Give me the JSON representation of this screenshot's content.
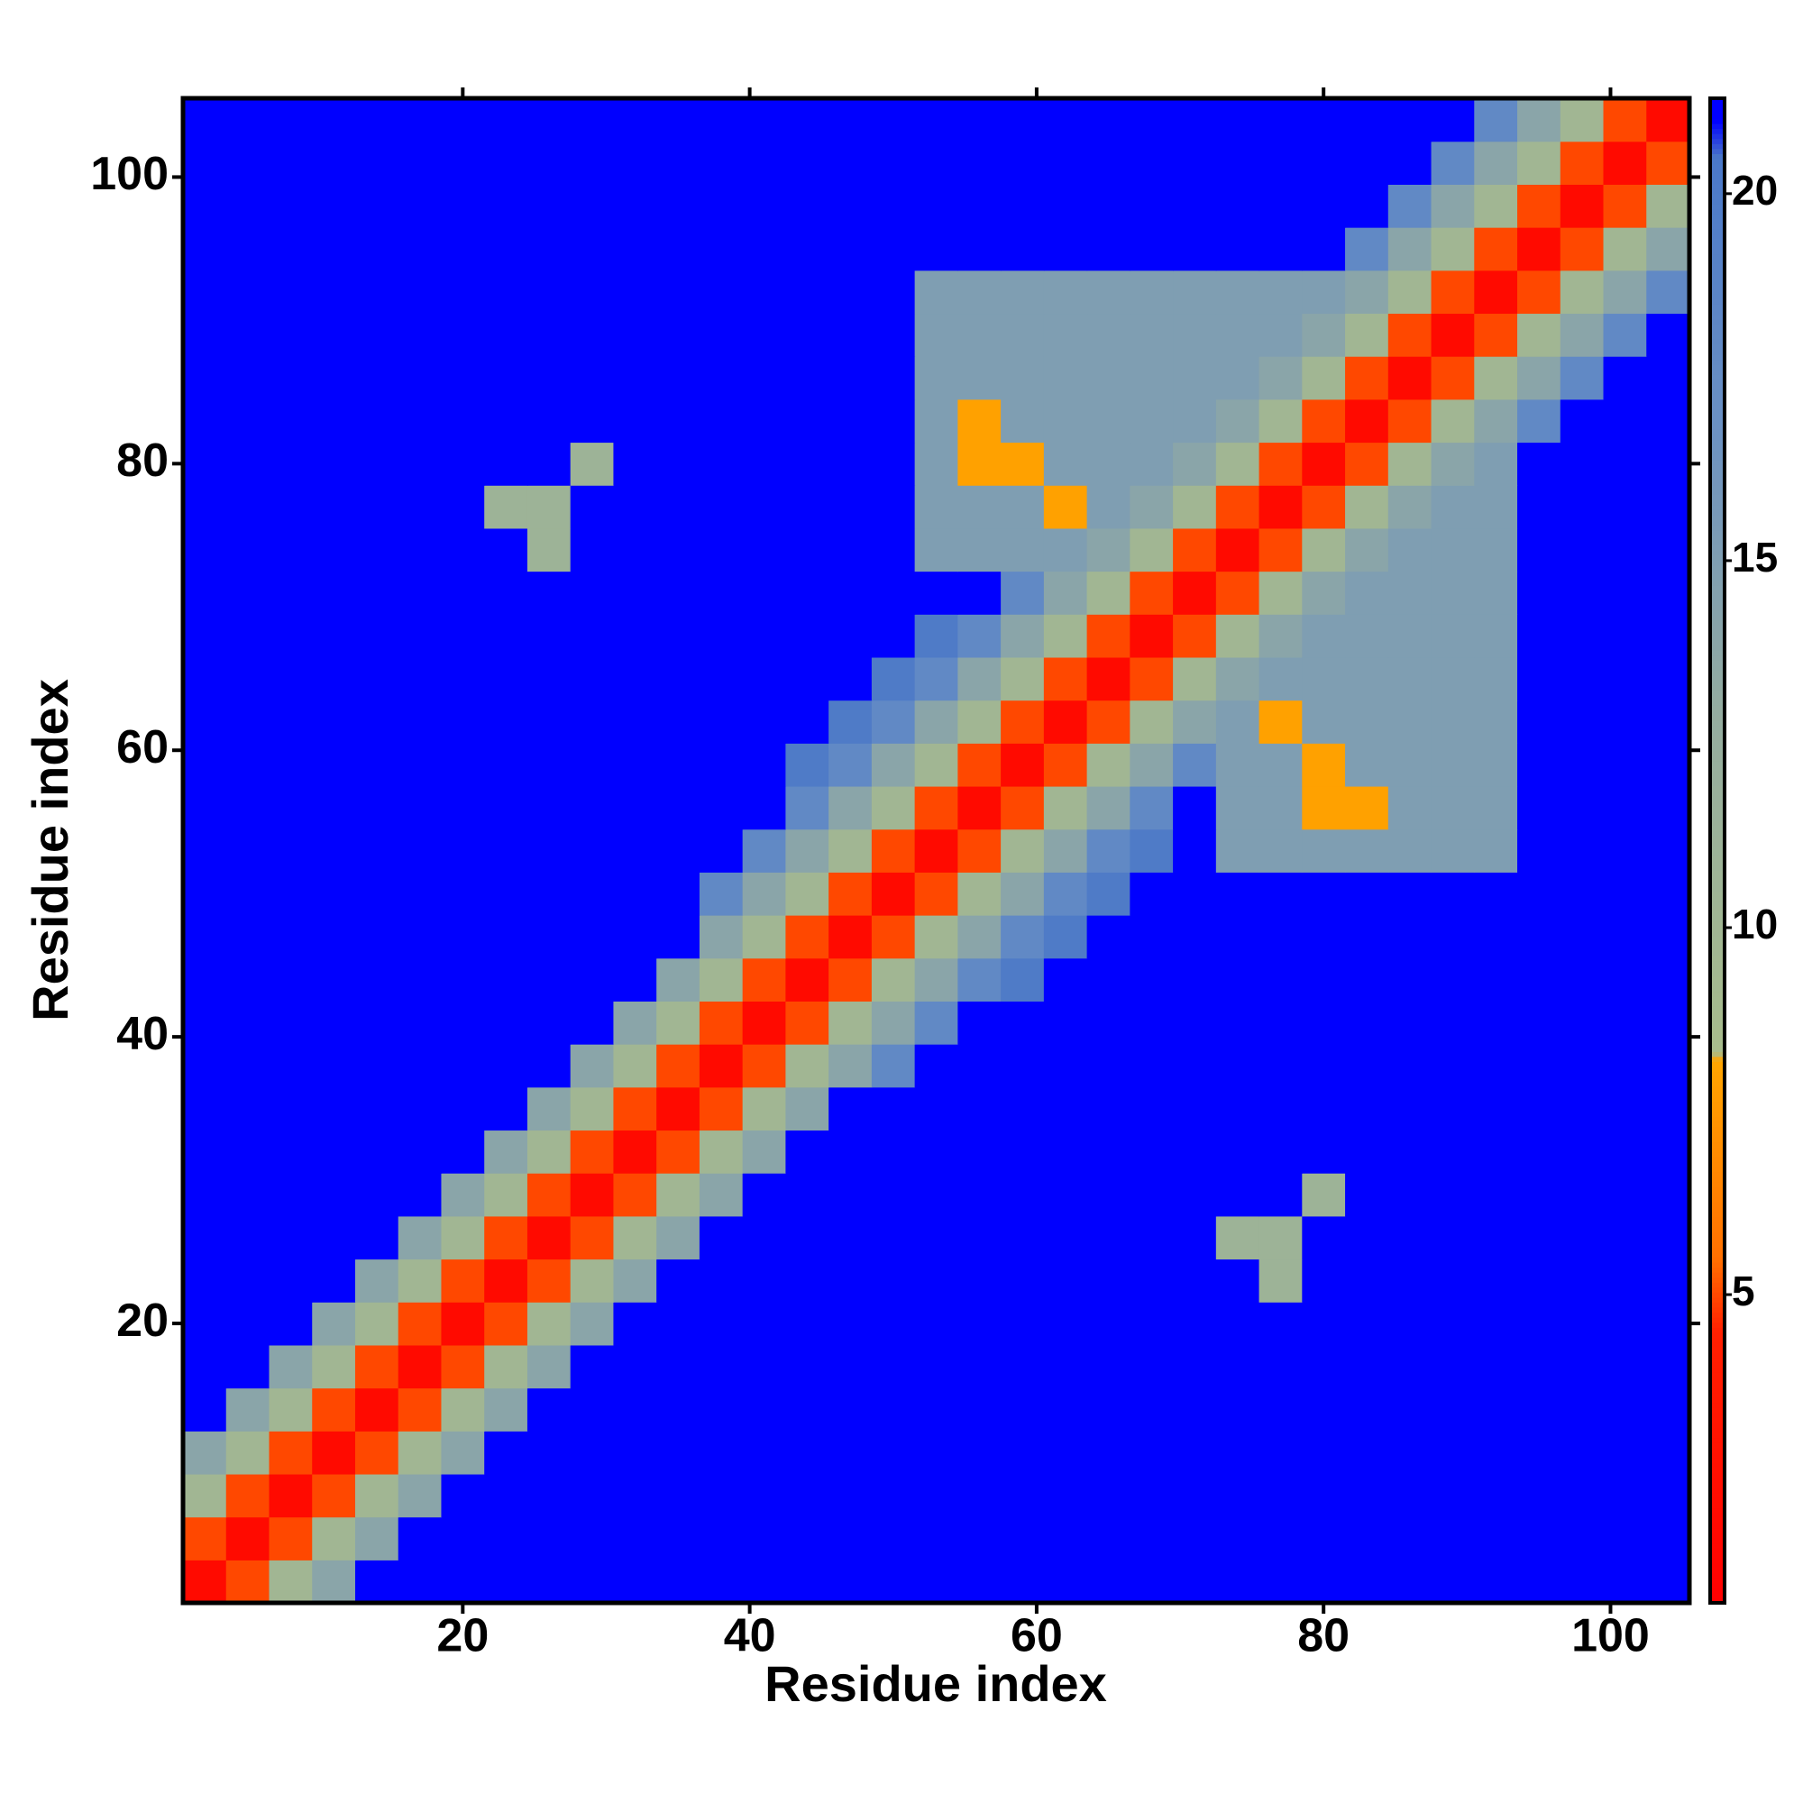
{
  "chart_data": {
    "type": "heatmap",
    "xlabel": "Residue index",
    "ylabel": "Residue index",
    "x": [
      2,
      5,
      8,
      11,
      14,
      17,
      20,
      23,
      26,
      29,
      32,
      35,
      38,
      41,
      44,
      47,
      50,
      53,
      56,
      59,
      62,
      65,
      68,
      71,
      74,
      77,
      80,
      83,
      86,
      89,
      92,
      95,
      98,
      101,
      104
    ],
    "y": [
      2,
      5,
      8,
      11,
      14,
      17,
      20,
      23,
      26,
      29,
      32,
      35,
      38,
      41,
      44,
      47,
      50,
      53,
      56,
      59,
      62,
      65,
      68,
      71,
      74,
      77,
      80,
      83,
      86,
      89,
      92,
      95,
      98,
      101,
      104
    ],
    "z": [
      [
        2,
        5,
        10,
        14,
        21,
        21,
        21,
        21,
        21,
        21,
        21,
        21,
        21,
        21,
        21,
        21,
        21,
        21,
        21,
        21,
        21,
        21,
        21,
        21,
        21,
        21,
        21,
        21,
        21,
        21,
        21,
        21,
        21,
        21,
        21
      ],
      [
        5,
        2,
        5,
        10,
        14,
        21,
        21,
        21,
        21,
        21,
        21,
        21,
        21,
        21,
        21,
        21,
        21,
        21,
        21,
        21,
        21,
        21,
        21,
        21,
        21,
        21,
        21,
        21,
        21,
        21,
        21,
        21,
        21,
        21,
        21
      ],
      [
        10,
        5,
        2,
        5,
        10,
        14,
        21,
        21,
        21,
        21,
        21,
        21,
        21,
        21,
        21,
        21,
        21,
        21,
        21,
        21,
        21,
        21,
        21,
        21,
        21,
        21,
        21,
        21,
        21,
        21,
        21,
        21,
        21,
        21,
        21
      ],
      [
        14,
        10,
        5,
        2,
        5,
        10,
        14,
        21,
        21,
        21,
        21,
        21,
        21,
        21,
        21,
        21,
        21,
        21,
        21,
        21,
        21,
        21,
        21,
        21,
        21,
        21,
        21,
        21,
        21,
        21,
        21,
        21,
        21,
        21,
        21
      ],
      [
        21,
        14,
        10,
        5,
        2,
        5,
        10,
        14,
        21,
        21,
        21,
        21,
        21,
        21,
        21,
        21,
        21,
        21,
        21,
        21,
        21,
        21,
        21,
        21,
        21,
        21,
        21,
        21,
        21,
        21,
        21,
        21,
        21,
        21,
        21
      ],
      [
        21,
        21,
        14,
        10,
        5,
        2,
        5,
        10,
        14,
        21,
        21,
        21,
        21,
        21,
        21,
        21,
        21,
        21,
        21,
        21,
        21,
        21,
        21,
        21,
        21,
        21,
        21,
        21,
        21,
        21,
        21,
        21,
        21,
        21,
        21
      ],
      [
        21,
        21,
        21,
        14,
        10,
        5,
        2,
        5,
        10,
        14,
        21,
        21,
        21,
        21,
        21,
        21,
        21,
        21,
        21,
        21,
        21,
        21,
        21,
        21,
        21,
        21,
        21,
        21,
        21,
        21,
        21,
        21,
        21,
        21,
        21
      ],
      [
        21,
        21,
        21,
        21,
        14,
        10,
        5,
        2,
        5,
        10,
        14,
        21,
        21,
        21,
        21,
        21,
        21,
        21,
        21,
        21,
        21,
        21,
        21,
        21,
        21,
        11,
        21,
        21,
        21,
        21,
        21,
        21,
        21,
        21,
        21
      ],
      [
        21,
        21,
        21,
        21,
        21,
        14,
        10,
        5,
        2,
        5,
        10,
        14,
        21,
        21,
        21,
        21,
        21,
        21,
        21,
        21,
        21,
        21,
        21,
        21,
        11,
        11,
        21,
        21,
        21,
        21,
        21,
        21,
        21,
        21,
        21
      ],
      [
        21,
        21,
        21,
        21,
        21,
        21,
        14,
        10,
        5,
        2,
        5,
        10,
        14,
        21,
        21,
        21,
        21,
        21,
        21,
        21,
        21,
        21,
        21,
        21,
        21,
        21,
        11,
        21,
        21,
        21,
        21,
        21,
        21,
        21,
        21
      ],
      [
        21,
        21,
        21,
        21,
        21,
        21,
        21,
        14,
        10,
        5,
        2,
        5,
        10,
        14,
        21,
        21,
        21,
        21,
        21,
        21,
        21,
        21,
        21,
        21,
        21,
        21,
        21,
        21,
        21,
        21,
        21,
        21,
        21,
        21,
        21
      ],
      [
        21,
        21,
        21,
        21,
        21,
        21,
        21,
        21,
        14,
        10,
        5,
        2,
        5,
        10,
        14,
        21,
        21,
        21,
        21,
        21,
        21,
        21,
        21,
        21,
        21,
        21,
        21,
        21,
        21,
        21,
        21,
        21,
        21,
        21,
        21
      ],
      [
        21,
        21,
        21,
        21,
        21,
        21,
        21,
        21,
        21,
        14,
        10,
        5,
        2,
        5,
        10,
        14,
        18,
        21,
        21,
        21,
        21,
        21,
        21,
        21,
        21,
        21,
        21,
        21,
        21,
        21,
        21,
        21,
        21,
        21,
        21
      ],
      [
        21,
        21,
        21,
        21,
        21,
        21,
        21,
        21,
        21,
        21,
        14,
        10,
        5,
        2,
        5,
        10,
        14,
        18,
        21,
        21,
        21,
        21,
        21,
        21,
        21,
        21,
        21,
        21,
        21,
        21,
        21,
        21,
        21,
        21,
        21
      ],
      [
        21,
        21,
        21,
        21,
        21,
        21,
        21,
        21,
        21,
        21,
        21,
        14,
        10,
        5,
        2,
        5,
        10,
        14,
        18,
        20,
        21,
        21,
        21,
        21,
        21,
        21,
        21,
        21,
        21,
        21,
        21,
        21,
        21,
        21,
        21
      ],
      [
        21,
        21,
        21,
        21,
        21,
        21,
        21,
        21,
        21,
        21,
        21,
        21,
        14,
        10,
        5,
        2,
        5,
        10,
        14,
        18,
        20,
        21,
        21,
        21,
        21,
        21,
        21,
        21,
        21,
        21,
        21,
        21,
        21,
        21,
        21
      ],
      [
        21,
        21,
        21,
        21,
        21,
        21,
        21,
        21,
        21,
        21,
        21,
        21,
        18,
        14,
        10,
        5,
        2,
        5,
        10,
        14,
        18,
        20,
        21,
        21,
        21,
        21,
        21,
        21,
        21,
        21,
        21,
        21,
        21,
        21,
        21
      ],
      [
        21,
        21,
        21,
        21,
        21,
        21,
        21,
        21,
        21,
        21,
        21,
        21,
        21,
        18,
        14,
        10,
        5,
        2,
        5,
        10,
        14,
        18,
        20,
        21,
        15,
        15,
        15,
        15,
        15,
        15,
        15,
        21,
        21,
        21,
        21
      ],
      [
        21,
        21,
        21,
        21,
        21,
        21,
        21,
        21,
        21,
        21,
        21,
        21,
        21,
        21,
        18,
        14,
        10,
        5,
        2,
        5,
        10,
        14,
        18,
        21,
        15,
        15,
        8,
        8,
        15,
        15,
        15,
        21,
        21,
        21,
        21
      ],
      [
        21,
        21,
        21,
        21,
        21,
        21,
        21,
        21,
        21,
        21,
        21,
        21,
        21,
        21,
        20,
        18,
        14,
        10,
        5,
        2,
        5,
        10,
        14,
        18,
        15,
        15,
        8,
        15,
        15,
        15,
        15,
        21,
        21,
        21,
        21
      ],
      [
        21,
        21,
        21,
        21,
        21,
        21,
        21,
        21,
        21,
        21,
        21,
        21,
        21,
        21,
        21,
        20,
        18,
        14,
        10,
        5,
        2,
        5,
        10,
        14,
        15,
        8,
        15,
        15,
        15,
        15,
        15,
        21,
        21,
        21,
        21
      ],
      [
        21,
        21,
        21,
        21,
        21,
        21,
        21,
        21,
        21,
        21,
        21,
        21,
        21,
        21,
        21,
        21,
        20,
        18,
        14,
        10,
        5,
        2,
        5,
        10,
        14,
        15,
        15,
        15,
        15,
        15,
        15,
        21,
        21,
        21,
        21
      ],
      [
        21,
        21,
        21,
        21,
        21,
        21,
        21,
        21,
        21,
        21,
        21,
        21,
        21,
        21,
        21,
        21,
        21,
        20,
        18,
        14,
        10,
        5,
        2,
        5,
        10,
        14,
        15,
        15,
        15,
        15,
        15,
        21,
        21,
        21,
        21
      ],
      [
        21,
        21,
        21,
        21,
        21,
        21,
        21,
        21,
        21,
        21,
        21,
        21,
        21,
        21,
        21,
        21,
        21,
        21,
        21,
        18,
        14,
        10,
        5,
        2,
        5,
        10,
        14,
        15,
        15,
        15,
        15,
        21,
        21,
        21,
        21
      ],
      [
        21,
        21,
        21,
        21,
        21,
        21,
        21,
        21,
        11,
        21,
        21,
        21,
        21,
        21,
        21,
        21,
        21,
        15,
        15,
        15,
        15,
        14,
        10,
        5,
        2,
        5,
        10,
        14,
        15,
        15,
        15,
        21,
        21,
        21,
        21
      ],
      [
        21,
        21,
        21,
        21,
        21,
        21,
        21,
        11,
        11,
        21,
        21,
        21,
        21,
        21,
        21,
        21,
        21,
        15,
        15,
        15,
        8,
        15,
        14,
        10,
        5,
        2,
        5,
        10,
        14,
        15,
        15,
        21,
        21,
        21,
        21
      ],
      [
        21,
        21,
        21,
        21,
        21,
        21,
        21,
        21,
        21,
        11,
        21,
        21,
        21,
        21,
        21,
        21,
        21,
        15,
        8,
        8,
        15,
        15,
        15,
        14,
        10,
        5,
        2,
        5,
        10,
        14,
        15,
        21,
        21,
        21,
        21
      ],
      [
        21,
        21,
        21,
        21,
        21,
        21,
        21,
        21,
        21,
        21,
        21,
        21,
        21,
        21,
        21,
        21,
        21,
        15,
        8,
        15,
        15,
        15,
        15,
        15,
        14,
        10,
        5,
        2,
        5,
        10,
        14,
        18,
        21,
        21,
        21
      ],
      [
        21,
        21,
        21,
        21,
        21,
        21,
        21,
        21,
        21,
        21,
        21,
        21,
        21,
        21,
        21,
        21,
        21,
        15,
        15,
        15,
        15,
        15,
        15,
        15,
        15,
        14,
        10,
        5,
        2,
        5,
        10,
        14,
        18,
        21,
        21
      ],
      [
        21,
        21,
        21,
        21,
        21,
        21,
        21,
        21,
        21,
        21,
        21,
        21,
        21,
        21,
        21,
        21,
        21,
        15,
        15,
        15,
        15,
        15,
        15,
        15,
        15,
        15,
        14,
        10,
        5,
        2,
        5,
        10,
        14,
        18,
        21
      ],
      [
        21,
        21,
        21,
        21,
        21,
        21,
        21,
        21,
        21,
        21,
        21,
        21,
        21,
        21,
        21,
        21,
        21,
        15,
        15,
        15,
        15,
        15,
        15,
        15,
        15,
        15,
        15,
        14,
        10,
        5,
        2,
        5,
        10,
        14,
        18
      ],
      [
        21,
        21,
        21,
        21,
        21,
        21,
        21,
        21,
        21,
        21,
        21,
        21,
        21,
        21,
        21,
        21,
        21,
        21,
        21,
        21,
        21,
        21,
        21,
        21,
        21,
        21,
        21,
        18,
        14,
        10,
        5,
        2,
        5,
        10,
        14
      ],
      [
        21,
        21,
        21,
        21,
        21,
        21,
        21,
        21,
        21,
        21,
        21,
        21,
        21,
        21,
        21,
        21,
        21,
        21,
        21,
        21,
        21,
        21,
        21,
        21,
        21,
        21,
        21,
        21,
        18,
        14,
        10,
        5,
        2,
        5,
        10
      ],
      [
        21,
        21,
        21,
        21,
        21,
        21,
        21,
        21,
        21,
        21,
        21,
        21,
        21,
        21,
        21,
        21,
        21,
        21,
        21,
        21,
        21,
        21,
        21,
        21,
        21,
        21,
        21,
        21,
        21,
        18,
        14,
        10,
        5,
        2,
        5
      ],
      [
        21,
        21,
        21,
        21,
        21,
        21,
        21,
        21,
        21,
        21,
        21,
        21,
        21,
        21,
        21,
        21,
        21,
        21,
        21,
        21,
        21,
        21,
        21,
        21,
        21,
        21,
        21,
        21,
        21,
        21,
        18,
        14,
        10,
        5,
        2
      ]
    ],
    "xlim": [
      0.5,
      105.5
    ],
    "ylim": [
      0.5,
      105.5
    ],
    "xticks": [
      20,
      40,
      60,
      80,
      100
    ],
    "yticks": [
      20,
      40,
      60,
      80,
      100
    ],
    "zlim": [
      0.8,
      21.3
    ],
    "zticks": [
      5,
      10,
      15,
      20
    ],
    "colorscale": [
      [
        0.8,
        "#ff0000"
      ],
      [
        4.5,
        "#ff2000"
      ],
      [
        5.5,
        "#ff7000"
      ],
      [
        8.2,
        "#ffa500"
      ],
      [
        8.3,
        "#a8bc8c"
      ],
      [
        13,
        "#94aca0"
      ],
      [
        17,
        "#6a90c4"
      ],
      [
        20.5,
        "#4a78c8"
      ],
      [
        21,
        "#0000ff"
      ]
    ]
  }
}
